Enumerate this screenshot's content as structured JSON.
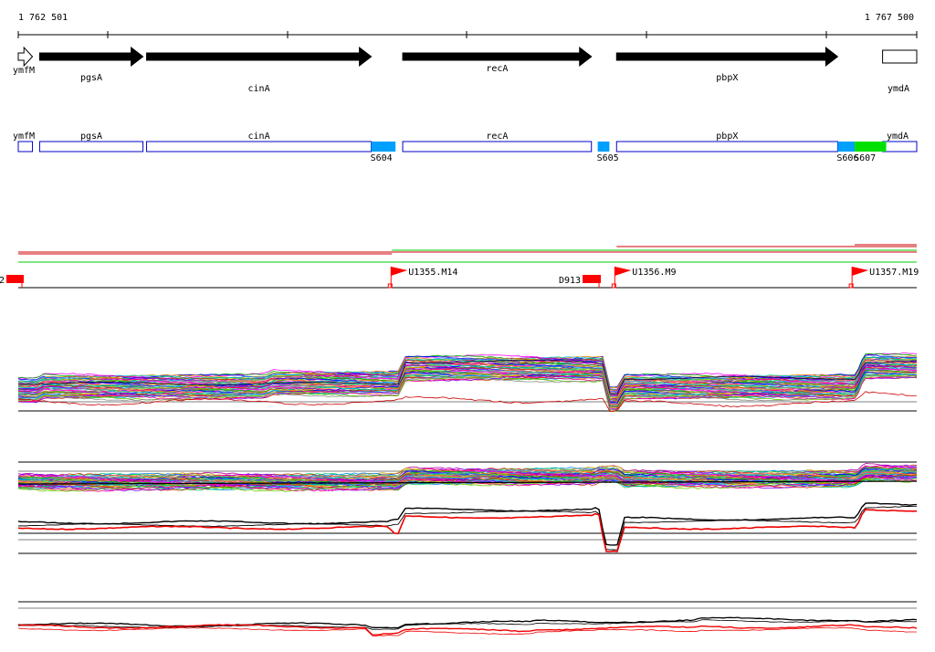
{
  "ruler": {
    "start_label": "1 762 501",
    "end_label": "1 767 500",
    "start": 1762501,
    "end": 1767500
  },
  "genes": [
    {
      "name": "ymfM",
      "start": 1762501,
      "end": 1762580,
      "strand": "+",
      "filled": false,
      "label": "ymfM"
    },
    {
      "name": "pgsA",
      "start": 1762620,
      "end": 1763195,
      "strand": "+",
      "filled": true,
      "label": "pgsA"
    },
    {
      "name": "cinA",
      "start": 1763215,
      "end": 1764465,
      "strand": "+",
      "filled": true,
      "label": "cinA"
    },
    {
      "name": "recA",
      "start": 1764640,
      "end": 1765690,
      "strand": "+",
      "filled": true,
      "label": "recA"
    },
    {
      "name": "pbpX",
      "start": 1765830,
      "end": 1767060,
      "strand": "+",
      "filled": true,
      "label": "pbpX"
    },
    {
      "name": "ymdA",
      "start": 1767310,
      "end": 1767500,
      "strand": "-",
      "filled": false,
      "label": "ymdA"
    }
  ],
  "gene_boxes": [
    {
      "name": "ymfM",
      "start": 1762501,
      "end": 1762580,
      "label": "ymfM"
    },
    {
      "name": "pgsA",
      "start": 1762620,
      "end": 1763195,
      "label": "pgsA"
    },
    {
      "name": "cinA",
      "start": 1763215,
      "end": 1764465,
      "label": "cinA"
    },
    {
      "name": "recA",
      "start": 1764640,
      "end": 1765690,
      "label": "recA"
    },
    {
      "name": "pbpX",
      "start": 1765830,
      "end": 1767060,
      "label": "pbpX"
    },
    {
      "name": "ymdA",
      "start": 1767310,
      "end": 1767500,
      "label": "ymdA"
    }
  ],
  "segments": [
    {
      "label": "S604",
      "start": 1764465,
      "end": 1764600,
      "color": "#00a0ff"
    },
    {
      "label": "S605",
      "start": 1765725,
      "end": 1765790,
      "color": "#00a0ff"
    },
    {
      "label": "S606",
      "start": 1767060,
      "end": 1767155,
      "color": "#00a0ff"
    },
    {
      "label": "S607",
      "start": 1767155,
      "end": 1767330,
      "color": "#00e000"
    }
  ],
  "conditions": [
    {
      "name": "red-1",
      "color": "#cc0000",
      "breaks": [
        [
          1762501,
          1767500
        ]
      ]
    },
    {
      "name": "red-2",
      "color": "#cc0000",
      "breaks": [
        [
          1762501,
          1764580
        ]
      ]
    },
    {
      "name": "green-1",
      "color": "#00cc00",
      "breaks": [
        [
          1764580,
          1767500
        ]
      ]
    },
    {
      "name": "red-3",
      "color": "#cc0000",
      "breaks": [
        [
          1765830,
          1767500
        ]
      ]
    },
    {
      "name": "green-2",
      "color": "#00cc00",
      "breaks": [
        [
          1762501,
          1767500
        ]
      ]
    },
    {
      "name": "red-4",
      "color": "#cc0000",
      "breaks": [
        [
          1767155,
          1767500
        ]
      ]
    }
  ],
  "promoters": [
    {
      "label": "U1355.M14",
      "pos": 1764575,
      "kind": "flag",
      "color": "#ff0000"
    },
    {
      "label": "U1356.M9",
      "pos": 1765820,
      "kind": "flag",
      "color": "#ff0000"
    },
    {
      "label": "U1357.M19",
      "pos": 1767140,
      "kind": "flag",
      "color": "#ff0000"
    }
  ],
  "terminators": [
    {
      "label": "2",
      "start": 1762501,
      "end": 1762535,
      "color": "#ff0000"
    },
    {
      "label": "D913",
      "start": 1765590,
      "end": 1765690,
      "color": "#ff0000"
    }
  ],
  "colors": {
    "background": "#ffffff",
    "gene_fill": "#000000",
    "gene_box_stroke": "#0000cc",
    "accent_red": "#ff0000"
  }
}
